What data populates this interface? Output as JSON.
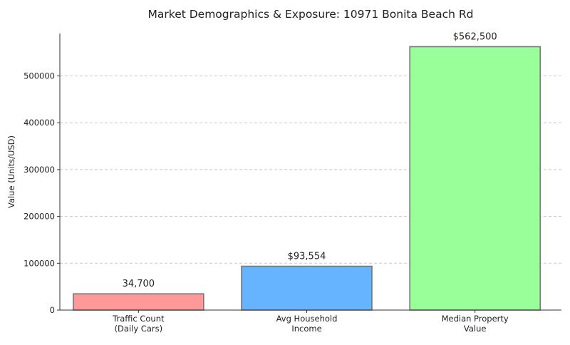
{
  "chart_data": {
    "type": "bar",
    "title": "Market Demographics & Exposure: 10971 Bonita Beach Rd",
    "xlabel": "",
    "ylabel": "Value (Units/USD)",
    "categories": [
      [
        "Traffic Count",
        "(Daily Cars)"
      ],
      [
        "Avg Household",
        "Income"
      ],
      [
        "Median Property",
        "Value"
      ]
    ],
    "values": [
      34700,
      93554,
      562500
    ],
    "data_labels": [
      "34,700",
      "$93,554",
      "$562,500"
    ],
    "colors": [
      "#ff9999",
      "#66b3ff",
      "#99ff99"
    ],
    "edge_color": "#777777",
    "ylim": [
      0,
      590625
    ],
    "yticks": [
      0,
      100000,
      200000,
      300000,
      400000,
      500000
    ],
    "ytick_labels": [
      "0",
      "100000",
      "200000",
      "300000",
      "400000",
      "500000"
    ],
    "grid": "y-dashed",
    "legend": "none"
  }
}
